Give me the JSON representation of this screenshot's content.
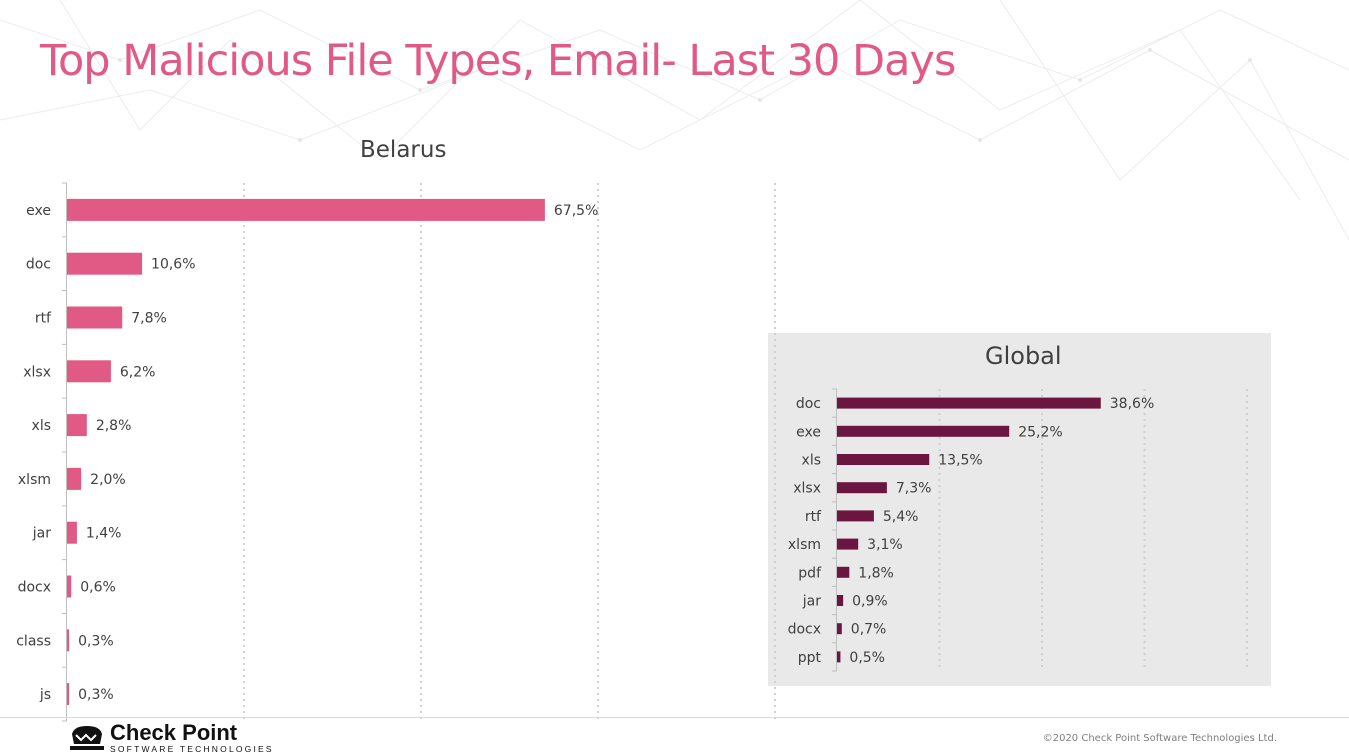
{
  "page": {
    "title": "Top Malicious File Types, Email- Last 30 Days",
    "copyright": "©2020 Check Point Software Technologies Ltd.",
    "logo_name": "Check Point",
    "logo_sub": "SOFTWARE TECHNOLOGIES"
  },
  "colors": {
    "title": "#e05a85",
    "belarus_bar": "#e05a85",
    "global_bar": "#6b1640",
    "global_panel": "#e8e9e8"
  },
  "chart_data": [
    {
      "type": "bar",
      "orientation": "horizontal",
      "title": "Belarus",
      "categories": [
        "exe",
        "doc",
        "rtf",
        "xlsx",
        "xls",
        "xlsm",
        "jar",
        "docx",
        "class",
        "js"
      ],
      "values": [
        67.5,
        10.6,
        7.8,
        6.2,
        2.8,
        2.0,
        1.4,
        0.6,
        0.3,
        0.3
      ],
      "data_labels": [
        "67,5%",
        "10,6%",
        "7,8%",
        "6,2%",
        "2,8%",
        "2,0%",
        "1,4%",
        "0,6%",
        "0,3%",
        "0,3%"
      ],
      "xlim": [
        0,
        100
      ],
      "grid": true
    },
    {
      "type": "bar",
      "orientation": "horizontal",
      "title": "Global",
      "categories": [
        "doc",
        "exe",
        "xls",
        "xlsx",
        "rtf",
        "xlsm",
        "pdf",
        "jar",
        "docx",
        "ppt"
      ],
      "values": [
        38.6,
        25.2,
        13.5,
        7.3,
        5.4,
        3.1,
        1.8,
        0.9,
        0.7,
        0.5
      ],
      "data_labels": [
        "38,6%",
        "25,2%",
        "13,5%",
        "7,3%",
        "5,4%",
        "3,1%",
        "1,8%",
        "0,9%",
        "0,7%",
        "0,5%"
      ],
      "xlim": [
        0,
        60
      ],
      "grid": true
    }
  ]
}
